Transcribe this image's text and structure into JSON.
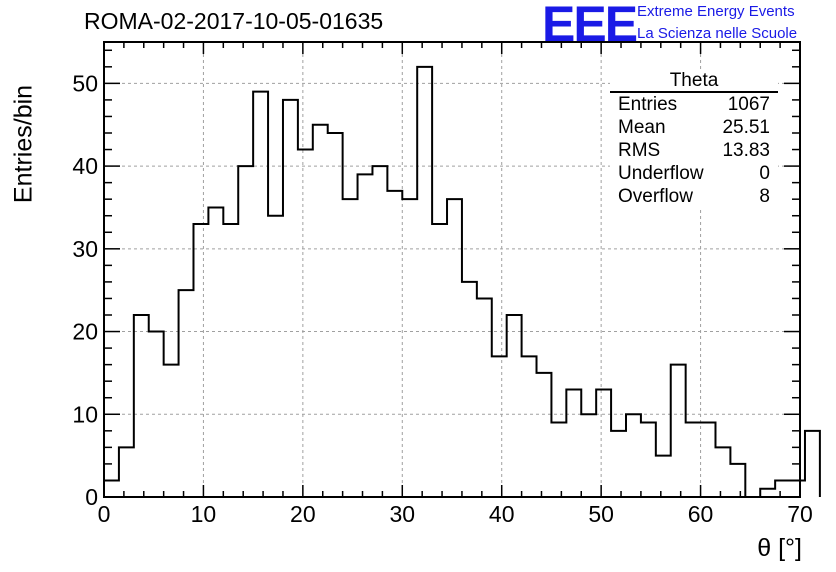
{
  "header": {
    "run_title": "ROMA-02-2017-10-05-01635",
    "logo_text": "EEE",
    "logo_line1": "Extreme Energy Events",
    "logo_line2": "La Scienza nelle Scuole"
  },
  "stats": {
    "title": "Theta",
    "rows": [
      {
        "label": "Entries",
        "value": "1067"
      },
      {
        "label": "Mean",
        "value": "25.51"
      },
      {
        "label": "RMS",
        "value": "13.83"
      },
      {
        "label": "Underflow",
        "value": "0"
      },
      {
        "label": "Overflow",
        "value": "8"
      }
    ]
  },
  "colors": {
    "logo": "#1a1ae6",
    "line": "#000000",
    "grid": "#a0a0a0"
  },
  "chart_data": {
    "type": "histogram",
    "ylabel": "Entries/bin",
    "xlabel": "θ [°]",
    "xlim": [
      0,
      70
    ],
    "ylim": [
      0,
      55
    ],
    "grid": true,
    "bin_width": 1.5,
    "x_ticks": [
      0,
      10,
      20,
      30,
      40,
      50,
      60,
      70
    ],
    "x_tick_labels": [
      "0",
      "10",
      "20",
      "30",
      "40",
      "50",
      "60",
      "70"
    ],
    "y_ticks": [
      0,
      10,
      20,
      30,
      40,
      50
    ],
    "y_tick_labels": [
      "0",
      "10",
      "20",
      "30",
      "40",
      "50"
    ],
    "bin_edges_start": 0,
    "values": [
      2,
      6,
      22,
      20,
      16,
      25,
      33,
      35,
      33,
      40,
      49,
      34,
      48,
      42,
      45,
      44,
      36,
      39,
      40,
      37,
      36,
      52,
      33,
      36,
      26,
      24,
      17,
      22,
      17,
      15,
      9,
      13,
      10,
      13,
      8,
      10,
      9,
      5,
      16,
      9,
      9,
      6,
      4,
      0,
      1,
      2,
      2,
      8
    ]
  }
}
